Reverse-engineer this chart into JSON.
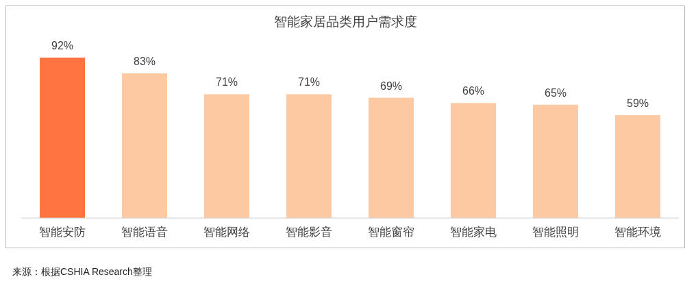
{
  "chart_data": {
    "type": "bar",
    "title": "智能家居品类用户需求度",
    "categories": [
      "智能安防",
      "智能语音",
      "智能网络",
      "智能影音",
      "智能窗帘",
      "智能家电",
      "智能照明",
      "智能环境"
    ],
    "values": [
      92,
      83,
      71,
      71,
      69,
      66,
      65,
      59
    ],
    "value_labels": [
      "92%",
      "83%",
      "71%",
      "71%",
      "69%",
      "66%",
      "65%",
      "59%"
    ],
    "colors": [
      "#ff7440",
      "#fdc9a2",
      "#fdc9a2",
      "#fdc9a2",
      "#fdc9a2",
      "#fdc9a2",
      "#fdc9a2",
      "#fdc9a2"
    ],
    "annotations": [
      "来源：根据CSHIA Research整理"
    ]
  }
}
